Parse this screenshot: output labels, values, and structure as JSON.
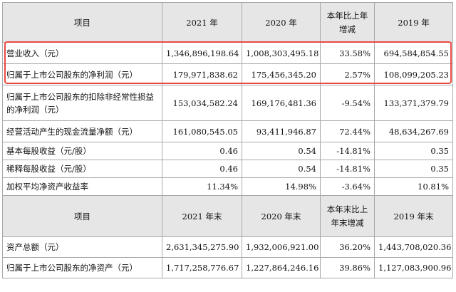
{
  "header1": {
    "item": "项目",
    "col1": "2021 年",
    "col2": "2020 年",
    "col3": "本年比上年增减",
    "col4": "2019 年"
  },
  "rows1": [
    {
      "label": "营业收入（元）",
      "v2021": "1,346,896,198.64",
      "v2020": "1,008,303,495.18",
      "change": "33.58%",
      "v2019": "694,584,854.55"
    },
    {
      "label": "归属于上市公司股东的净利润（元）",
      "v2021": "179,971,838.62",
      "v2020": "175,456,345.20",
      "change": "2.57%",
      "v2019": "108,099,205.23"
    },
    {
      "label": "归属于上市公司股东的扣除非经常性损益的净利润（元）",
      "v2021": "153,034,582.24",
      "v2020": "169,176,481.36",
      "change": "-9.54%",
      "v2019": "133,371,379.79"
    },
    {
      "label": "经营活动产生的现金流量净额（元）",
      "v2021": "161,080,545.05",
      "v2020": "93,411,946.87",
      "change": "72.44%",
      "v2019": "48,634,267.69"
    },
    {
      "label": "基本每股收益（元/股）",
      "v2021": "0.46",
      "v2020": "0.54",
      "change": "-14.81%",
      "v2019": "0.35"
    },
    {
      "label": "稀释每股收益（元/股）",
      "v2021": "0.46",
      "v2020": "0.54",
      "change": "-14.81%",
      "v2019": "0.35"
    },
    {
      "label": "加权平均净资产收益率",
      "v2021": "11.34%",
      "v2020": "14.98%",
      "change": "-3.64%",
      "v2019": "10.81%"
    }
  ],
  "header2": {
    "item": "项目",
    "col1": "2021 年末",
    "col2": "2020 年末",
    "col3": "本年末比上年末增减",
    "col4": "2019 年末"
  },
  "rows2": [
    {
      "label": "资产总额（元）",
      "v2021": "2,631,345,275.90",
      "v2020": "1,932,006,921.00",
      "change": "36.20%",
      "v2019": "1,443,708,020.36"
    },
    {
      "label": "归属于上市公司股东的净资产（元）",
      "v2021": "1,717,258,776.67",
      "v2020": "1,227,864,246.16",
      "change": "39.86%",
      "v2019": "1,127,083,900.96"
    }
  ],
  "colors": {
    "highlight": "#e84a43",
    "header_bg": "#e6e6e6",
    "border": "#a9a9a9"
  }
}
